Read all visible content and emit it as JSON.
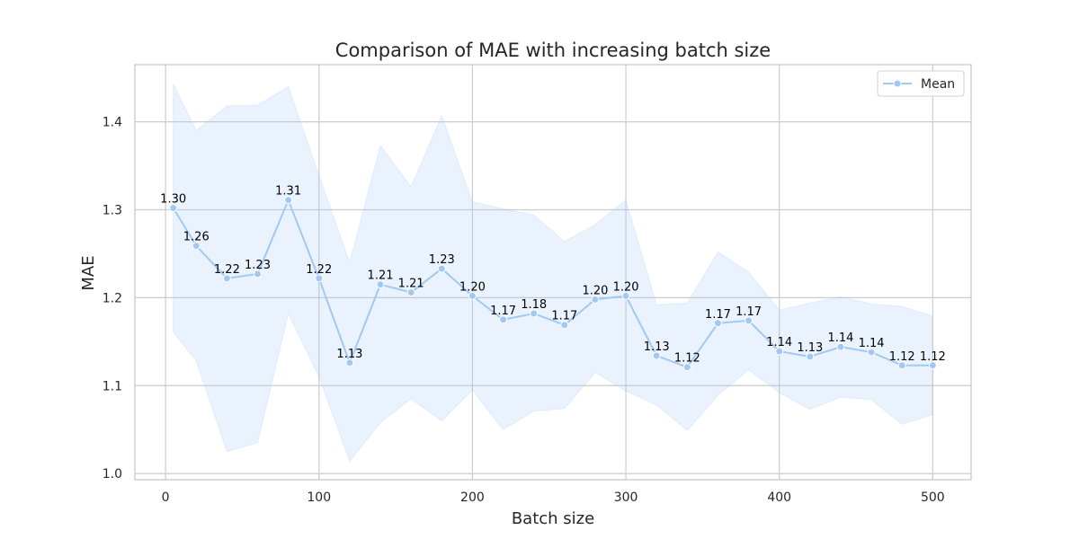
{
  "chart_data": {
    "type": "line",
    "title": "Comparison of MAE with increasing batch size",
    "xlabel": "Batch size",
    "ylabel": "MAE",
    "xlim": [
      -20,
      525
    ],
    "ylim": [
      0.993,
      1.465
    ],
    "xticks": [
      0,
      100,
      200,
      300,
      400,
      500
    ],
    "yticks": [
      1.0,
      1.1,
      1.2,
      1.3,
      1.4
    ],
    "ytick_labels": [
      "1.0",
      "1.1",
      "1.2",
      "1.3",
      "1.4"
    ],
    "grid": true,
    "legend_position": "top-right",
    "series": [
      {
        "name": "Mean",
        "color": "#a1c9f4",
        "x": [
          5,
          20,
          40,
          60,
          80,
          100,
          120,
          140,
          160,
          180,
          200,
          220,
          240,
          260,
          280,
          300,
          320,
          340,
          360,
          380,
          400,
          420,
          440,
          460,
          480,
          500
        ],
        "y": [
          1.302,
          1.259,
          1.222,
          1.227,
          1.311,
          1.222,
          1.126,
          1.215,
          1.206,
          1.233,
          1.202,
          1.175,
          1.182,
          1.169,
          1.198,
          1.202,
          1.134,
          1.121,
          1.171,
          1.174,
          1.139,
          1.133,
          1.144,
          1.138,
          1.123,
          1.123
        ],
        "labels": [
          "1.30",
          "1.26",
          "1.22",
          "1.23",
          "1.31",
          "1.22",
          "1.13",
          "1.21",
          "1.21",
          "1.23",
          "1.20",
          "1.17",
          "1.18",
          "1.17",
          "1.20",
          "1.20",
          "1.13",
          "1.12",
          "1.17",
          "1.17",
          "1.14",
          "1.13",
          "1.14",
          "1.14",
          "1.12",
          "1.12"
        ],
        "band_upper": [
          1.443,
          1.39,
          1.418,
          1.419,
          1.44,
          1.339,
          1.24,
          1.373,
          1.326,
          1.407,
          1.309,
          1.301,
          1.294,
          1.264,
          1.283,
          1.311,
          1.192,
          1.194,
          1.252,
          1.229,
          1.186,
          1.194,
          1.201,
          1.193,
          1.19,
          1.179
        ],
        "band_lower": [
          1.161,
          1.128,
          1.025,
          1.035,
          1.182,
          1.11,
          1.014,
          1.058,
          1.085,
          1.06,
          1.095,
          1.05,
          1.071,
          1.074,
          1.115,
          1.094,
          1.078,
          1.049,
          1.089,
          1.118,
          1.092,
          1.073,
          1.087,
          1.084,
          1.056,
          1.067
        ]
      }
    ]
  }
}
